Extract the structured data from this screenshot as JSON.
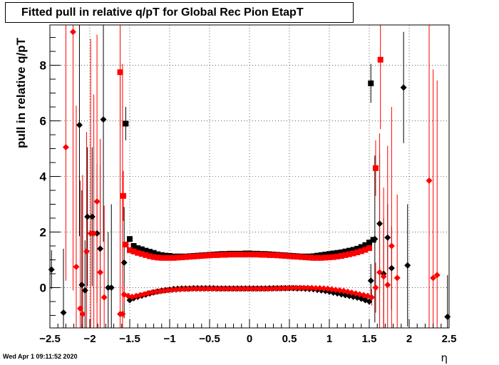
{
  "chart_data": {
    "type": "scatter",
    "title": "Fitted pull in relative q/pT for Global Rec Pion EtapT",
    "xlabel": "η",
    "ylabel": "pull in relative q/pT",
    "xlim": [
      -2.5,
      2.5
    ],
    "ylim": [
      -1.45,
      9.45
    ],
    "xticks": [
      -2.5,
      -2,
      -1.5,
      -1,
      -0.5,
      0,
      0.5,
      1,
      1.5,
      2,
      2.5
    ],
    "xtick_labels": [
      "−2.5",
      "−2",
      "−1.5",
      "−1",
      "−0.5",
      "0",
      "0.5",
      "1",
      "1.5",
      "2",
      "2.5"
    ],
    "yticks": [
      0,
      2,
      4,
      6,
      8
    ],
    "ytick_labels": [
      "0",
      "2",
      "4",
      "6",
      "8"
    ],
    "grid": true,
    "legend": false,
    "colors": {
      "black_series": "#000000",
      "red_series": "#ff0000"
    },
    "series": [
      {
        "color": "#000000",
        "marker": "square",
        "x": [
          -1.55,
          -1.5,
          -1.45,
          -1.4,
          -1.35,
          -1.3,
          -1.25,
          -1.2,
          -1.15,
          -1.1,
          -1.05,
          -1.0,
          -0.95,
          -0.9,
          -0.85,
          -0.8,
          -0.75,
          -0.7,
          -0.65,
          -0.6,
          -0.55,
          -0.5,
          -0.45,
          -0.4,
          -0.35,
          -0.3,
          -0.25,
          -0.2,
          -0.15,
          -0.1,
          -0.05,
          0.0,
          0.05,
          0.1,
          0.15,
          0.2,
          0.25,
          0.3,
          0.35,
          0.4,
          0.45,
          0.5,
          0.55,
          0.6,
          0.65,
          0.7,
          0.75,
          0.8,
          0.85,
          0.9,
          0.95,
          1.0,
          1.05,
          1.1,
          1.15,
          1.2,
          1.25,
          1.3,
          1.35,
          1.4,
          1.45,
          1.5,
          1.55,
          1.52
        ],
        "y": [
          5.9,
          1.75,
          1.5,
          1.42,
          1.38,
          1.33,
          1.29,
          1.25,
          1.2,
          1.17,
          1.15,
          1.14,
          1.12,
          1.12,
          1.12,
          1.12,
          1.13,
          1.14,
          1.15,
          1.16,
          1.17,
          1.18,
          1.19,
          1.2,
          1.21,
          1.21,
          1.22,
          1.22,
          1.22,
          1.22,
          1.23,
          1.23,
          1.22,
          1.22,
          1.21,
          1.21,
          1.2,
          1.19,
          1.18,
          1.17,
          1.16,
          1.15,
          1.14,
          1.13,
          1.12,
          1.12,
          1.12,
          1.13,
          1.15,
          1.17,
          1.19,
          1.21,
          1.23,
          1.25,
          1.27,
          1.3,
          1.33,
          1.36,
          1.4,
          1.46,
          1.53,
          1.62,
          1.72,
          7.35
        ],
        "err": [
          0.6,
          0.04,
          0.02,
          0.02,
          0.02,
          0.02,
          0.02,
          0.02,
          0.02,
          0.02,
          0.02,
          0.02,
          0.02,
          0.02,
          0.02,
          0.02,
          0.02,
          0.02,
          0.02,
          0.02,
          0.02,
          0.02,
          0.02,
          0.02,
          0.02,
          0.02,
          0.02,
          0.02,
          0.02,
          0.02,
          0.02,
          0.02,
          0.02,
          0.02,
          0.02,
          0.02,
          0.02,
          0.02,
          0.02,
          0.02,
          0.02,
          0.02,
          0.02,
          0.02,
          0.02,
          0.02,
          0.02,
          0.02,
          0.02,
          0.02,
          0.02,
          0.02,
          0.02,
          0.02,
          0.02,
          0.02,
          0.02,
          0.02,
          0.02,
          0.02,
          0.02,
          0.02,
          0.04,
          0.7
        ]
      },
      {
        "color": "#ff0000",
        "marker": "square",
        "x": [
          -1.62,
          -1.58,
          -1.55,
          -1.5,
          -1.45,
          -1.4,
          -1.35,
          -1.3,
          -1.25,
          -1.2,
          -1.15,
          -1.1,
          -1.05,
          -1.0,
          -0.95,
          -0.9,
          -0.85,
          -0.8,
          -0.75,
          -0.7,
          -0.65,
          -0.6,
          -0.55,
          -0.5,
          -0.45,
          -0.4,
          -0.35,
          -0.3,
          -0.25,
          -0.2,
          -0.15,
          -0.1,
          -0.05,
          0.0,
          0.05,
          0.1,
          0.15,
          0.2,
          0.25,
          0.3,
          0.35,
          0.4,
          0.45,
          0.5,
          0.55,
          0.6,
          0.65,
          0.7,
          0.75,
          0.8,
          0.85,
          0.9,
          0.95,
          1.0,
          1.05,
          1.1,
          1.15,
          1.2,
          1.25,
          1.3,
          1.35,
          1.4,
          1.45,
          1.5,
          1.58,
          1.64
        ],
        "y": [
          7.75,
          3.3,
          1.55,
          1.35,
          1.3,
          1.25,
          1.21,
          1.17,
          1.13,
          1.1,
          1.08,
          1.07,
          1.07,
          1.07,
          1.07,
          1.08,
          1.09,
          1.1,
          1.11,
          1.12,
          1.13,
          1.14,
          1.15,
          1.16,
          1.17,
          1.17,
          1.18,
          1.18,
          1.19,
          1.19,
          1.19,
          1.19,
          1.19,
          1.19,
          1.19,
          1.19,
          1.18,
          1.18,
          1.17,
          1.17,
          1.16,
          1.15,
          1.14,
          1.13,
          1.12,
          1.11,
          1.1,
          1.09,
          1.08,
          1.07,
          1.07,
          1.07,
          1.08,
          1.09,
          1.1,
          1.12,
          1.14,
          1.17,
          1.2,
          1.23,
          1.27,
          1.31,
          1.36,
          1.42,
          4.3,
          8.2
        ],
        "err": [
          2.0,
          0.9,
          0.05,
          0.02,
          0.02,
          0.02,
          0.02,
          0.02,
          0.02,
          0.02,
          0.02,
          0.02,
          0.02,
          0.02,
          0.02,
          0.02,
          0.02,
          0.02,
          0.02,
          0.02,
          0.02,
          0.02,
          0.02,
          0.02,
          0.02,
          0.02,
          0.02,
          0.02,
          0.02,
          0.02,
          0.02,
          0.02,
          0.02,
          0.02,
          0.02,
          0.02,
          0.02,
          0.02,
          0.02,
          0.02,
          0.02,
          0.02,
          0.02,
          0.02,
          0.02,
          0.02,
          0.02,
          0.02,
          0.02,
          0.02,
          0.02,
          0.02,
          0.02,
          0.02,
          0.02,
          0.02,
          0.02,
          0.02,
          0.02,
          0.02,
          0.02,
          0.02,
          0.02,
          0.02,
          1.0,
          2.5
        ]
      },
      {
        "color": "#000000",
        "marker": "diamond",
        "x": [
          -2.48,
          -2.33,
          -2.13,
          -2.1,
          -2.06,
          -2.03,
          -1.97,
          -1.91,
          -1.87,
          -1.83,
          -1.77,
          -1.73,
          -1.57,
          -1.5,
          -1.45,
          -1.4,
          -1.35,
          -1.3,
          -1.25,
          -1.2,
          -1.15,
          -1.1,
          -1.05,
          -1.0,
          -0.95,
          -0.9,
          -0.85,
          -0.8,
          -0.75,
          -0.7,
          -0.65,
          -0.6,
          -0.55,
          -0.5,
          -0.45,
          -0.4,
          -0.35,
          -0.3,
          -0.25,
          -0.2,
          -0.15,
          -0.1,
          -0.05,
          0.0,
          0.05,
          0.1,
          0.15,
          0.2,
          0.25,
          0.3,
          0.35,
          0.4,
          0.45,
          0.5,
          0.55,
          0.6,
          0.65,
          0.7,
          0.75,
          0.8,
          0.85,
          0.9,
          0.95,
          1.0,
          1.05,
          1.1,
          1.15,
          1.2,
          1.25,
          1.3,
          1.35,
          1.4,
          1.45,
          1.5,
          1.52,
          1.57,
          1.63,
          1.68,
          1.73,
          1.78,
          1.93,
          1.98,
          2.48
        ],
        "y": [
          0.65,
          -0.9,
          5.85,
          0.1,
          -0.1,
          2.55,
          2.55,
          1.95,
          1.4,
          6.05,
          0.0,
          0.0,
          0.9,
          -0.45,
          -0.38,
          -0.33,
          -0.29,
          -0.25,
          -0.21,
          -0.17,
          -0.14,
          -0.11,
          -0.09,
          -0.07,
          -0.05,
          -0.04,
          -0.03,
          -0.03,
          -0.03,
          -0.02,
          -0.02,
          -0.02,
          -0.02,
          -0.02,
          -0.02,
          -0.03,
          -0.03,
          -0.03,
          -0.03,
          -0.03,
          -0.03,
          -0.03,
          -0.03,
          -0.03,
          -0.03,
          -0.03,
          -0.03,
          -0.03,
          -0.02,
          -0.02,
          -0.02,
          -0.02,
          -0.02,
          -0.02,
          -0.02,
          -0.03,
          -0.03,
          -0.04,
          -0.05,
          -0.06,
          -0.08,
          -0.1,
          -0.12,
          -0.15,
          -0.18,
          -0.21,
          -0.24,
          -0.27,
          -0.3,
          -0.33,
          -0.36,
          -0.4,
          -0.45,
          -0.5,
          0.25,
          1.75,
          2.3,
          0.5,
          1.8,
          0.7,
          7.2,
          0.8,
          -1.05
        ],
        "err": [
          0.7,
          2.3,
          4.0,
          3.4,
          1.8,
          2.5,
          2.5,
          2.5,
          3.0,
          4.4,
          2.0,
          3.0,
          2.0,
          0.05,
          0.02,
          0.02,
          0.02,
          0.02,
          0.02,
          0.02,
          0.02,
          0.02,
          0.02,
          0.02,
          0.02,
          0.02,
          0.02,
          0.02,
          0.02,
          0.02,
          0.02,
          0.02,
          0.02,
          0.02,
          0.02,
          0.02,
          0.02,
          0.02,
          0.02,
          0.02,
          0.02,
          0.02,
          0.02,
          0.02,
          0.02,
          0.02,
          0.02,
          0.02,
          0.02,
          0.02,
          0.02,
          0.02,
          0.02,
          0.02,
          0.02,
          0.02,
          0.02,
          0.02,
          0.02,
          0.02,
          0.02,
          0.02,
          0.02,
          0.02,
          0.02,
          0.02,
          0.02,
          0.02,
          0.02,
          0.02,
          0.02,
          0.02,
          0.02,
          0.05,
          0.6,
          3.0,
          2.5,
          2.0,
          1.2,
          1.5,
          2.0,
          2.2,
          1.5
        ]
      },
      {
        "color": "#ff0000",
        "marker": "diamond",
        "x": [
          -2.3,
          -2.21,
          -2.17,
          -2.12,
          -2.09,
          -2.04,
          -1.99,
          -1.95,
          -1.91,
          -1.87,
          -1.82,
          -1.62,
          -1.59,
          -1.57,
          -1.52,
          -1.47,
          -1.42,
          -1.37,
          -1.32,
          -1.27,
          -1.22,
          -1.17,
          -1.12,
          -1.07,
          -1.02,
          -0.97,
          -0.92,
          -0.87,
          -0.82,
          -0.77,
          -0.72,
          -0.67,
          -0.62,
          -0.57,
          -0.52,
          -0.47,
          -0.42,
          -0.37,
          -0.32,
          -0.27,
          -0.22,
          -0.17,
          -0.12,
          -0.07,
          -0.02,
          0.03,
          0.08,
          0.13,
          0.18,
          0.23,
          0.28,
          0.33,
          0.38,
          0.43,
          0.48,
          0.53,
          0.58,
          0.63,
          0.68,
          0.73,
          0.78,
          0.83,
          0.88,
          0.93,
          0.98,
          1.03,
          1.08,
          1.13,
          1.18,
          1.23,
          1.28,
          1.33,
          1.38,
          1.43,
          1.48,
          1.53,
          1.58,
          1.63,
          1.68,
          1.73,
          1.78,
          1.85,
          2.25,
          2.3,
          2.35
        ],
        "y": [
          5.05,
          9.2,
          0.75,
          -0.75,
          -0.95,
          1.3,
          1.95,
          1.95,
          3.1,
          0.55,
          -0.35,
          -0.95,
          -0.95,
          -0.25,
          -0.3,
          -0.33,
          -0.3,
          -0.27,
          -0.24,
          -0.2,
          -0.17,
          -0.15,
          -0.13,
          -0.11,
          -0.09,
          -0.08,
          -0.07,
          -0.06,
          -0.05,
          -0.05,
          -0.04,
          -0.04,
          -0.04,
          -0.04,
          -0.04,
          -0.04,
          -0.04,
          -0.04,
          -0.04,
          -0.04,
          -0.04,
          -0.04,
          -0.04,
          -0.04,
          -0.04,
          -0.04,
          -0.04,
          -0.04,
          -0.04,
          -0.04,
          -0.04,
          -0.03,
          -0.03,
          -0.02,
          -0.02,
          -0.01,
          -0.01,
          -0.01,
          -0.01,
          -0.01,
          -0.01,
          -0.02,
          -0.02,
          -0.03,
          -0.04,
          -0.06,
          -0.08,
          -0.1,
          -0.12,
          -0.15,
          -0.18,
          -0.21,
          -0.24,
          -0.27,
          -0.3,
          -0.35,
          0.0,
          0.55,
          0.4,
          0.1,
          1.5,
          0.35,
          3.85,
          0.35,
          0.45
        ],
        "err": [
          4.8,
          9.3,
          5.8,
          4.6,
          5.0,
          4.3,
          7.0,
          5.0,
          6.0,
          4.8,
          3.3,
          9.0,
          9.0,
          0.3,
          0.05,
          0.02,
          0.02,
          0.02,
          0.02,
          0.02,
          0.02,
          0.02,
          0.02,
          0.02,
          0.02,
          0.02,
          0.02,
          0.02,
          0.02,
          0.02,
          0.02,
          0.02,
          0.02,
          0.02,
          0.02,
          0.02,
          0.02,
          0.02,
          0.02,
          0.02,
          0.02,
          0.02,
          0.02,
          0.02,
          0.02,
          0.02,
          0.02,
          0.02,
          0.02,
          0.02,
          0.02,
          0.02,
          0.02,
          0.02,
          0.02,
          0.02,
          0.02,
          0.02,
          0.02,
          0.02,
          0.02,
          0.02,
          0.02,
          0.02,
          0.02,
          0.02,
          0.02,
          0.02,
          0.02,
          0.02,
          0.02,
          0.02,
          0.02,
          0.02,
          0.05,
          0.3,
          0.9,
          5.0,
          3.2,
          5.0,
          5.0,
          3.0,
          8.0,
          7.5,
          7.0
        ]
      }
    ]
  },
  "footer": {
    "date": "Wed Apr  1 09:11:52 2020"
  }
}
